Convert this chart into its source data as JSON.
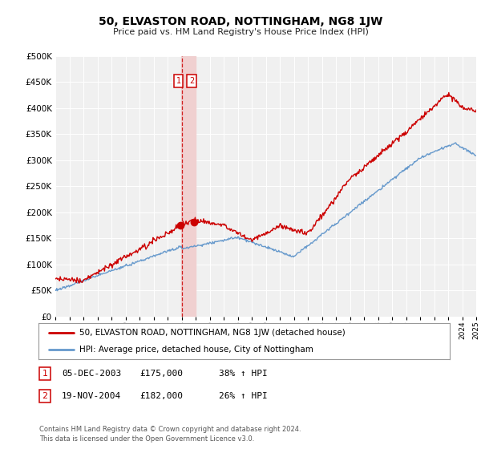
{
  "title": "50, ELVASTON ROAD, NOTTINGHAM, NG8 1JW",
  "subtitle": "Price paid vs. HM Land Registry's House Price Index (HPI)",
  "red_label": "50, ELVASTON ROAD, NOTTINGHAM, NG8 1JW (detached house)",
  "blue_label": "HPI: Average price, detached house, City of Nottingham",
  "transaction1_date": "05-DEC-2003",
  "transaction1_price": "£175,000",
  "transaction1_hpi": "38% ↑ HPI",
  "transaction1_year": 2003.92,
  "transaction1_value": 175000,
  "transaction2_date": "19-NOV-2004",
  "transaction2_price": "£182,000",
  "transaction2_hpi": "26% ↑ HPI",
  "transaction2_year": 2004.88,
  "transaction2_value": 182000,
  "vline_x": 2004.0,
  "vspan_x0": 2003.95,
  "vspan_x1": 2005.0,
  "xmin": 1995,
  "xmax": 2025,
  "ymin": 0,
  "ymax": 500000,
  "yticks": [
    0,
    50000,
    100000,
    150000,
    200000,
    250000,
    300000,
    350000,
    400000,
    450000,
    500000
  ],
  "footer_line1": "Contains HM Land Registry data © Crown copyright and database right 2024.",
  "footer_line2": "This data is licensed under the Open Government Licence v3.0.",
  "red_color": "#cc0000",
  "blue_color": "#6699cc",
  "background_color": "#ffffff",
  "plot_bg_color": "#f0f0f0",
  "grid_color": "#ffffff",
  "shaded_region_color": "#f0d0d0",
  "vline_color": "#cc0000",
  "legend_border_color": "#999999",
  "box_border_color": "#cc0000"
}
